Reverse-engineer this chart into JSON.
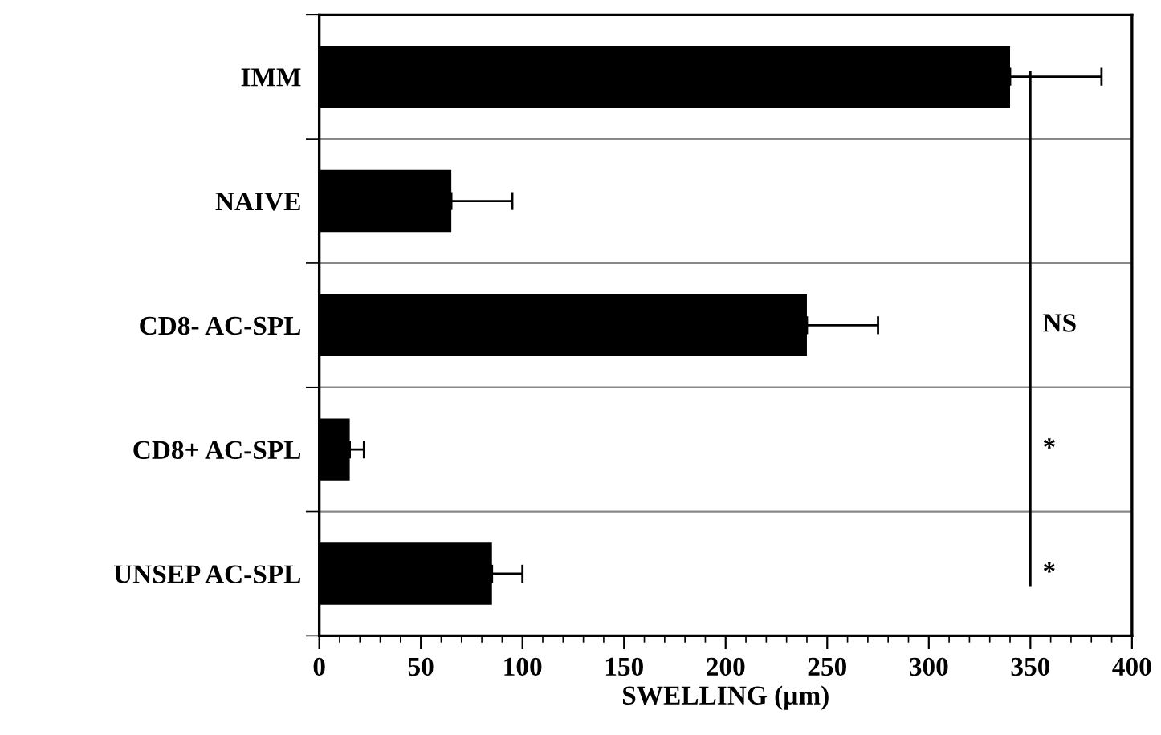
{
  "chart_data": {
    "type": "bar",
    "orientation": "horizontal",
    "xlabel": "SWELLING (µm)",
    "categories": [
      "IMM",
      "NAIVE",
      "CD8- AC-SPL",
      "CD8+ AC-SPL",
      "UNSEP AC-SPL"
    ],
    "values": [
      340,
      65,
      240,
      15,
      85
    ],
    "color": "#000000",
    "errors": [
      [
        340,
        385
      ],
      [
        65,
        95
      ],
      [
        240,
        275
      ],
      [
        15,
        22
      ],
      [
        85,
        100
      ]
    ],
    "xlim": [
      0,
      400
    ],
    "xticks": [
      0,
      50,
      100,
      150,
      200,
      250,
      300,
      350,
      400
    ],
    "grid": "y",
    "ref_lines": [
      {
        "axis": "x",
        "value": 350,
        "color": "#000000"
      }
    ],
    "annotations": [
      "NS",
      "*",
      "*"
    ]
  }
}
